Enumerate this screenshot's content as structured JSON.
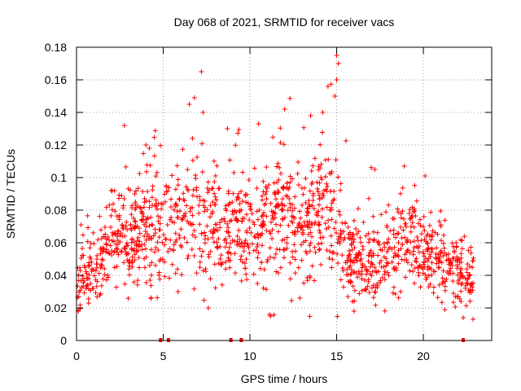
{
  "chart_data": {
    "type": "scatter",
    "title": "Day 068 of 2021, SRMTID for receiver vacs",
    "xlabel": "GPS time / hours",
    "ylabel": "SRMTID / TECUs",
    "xlim": [
      0,
      23.94
    ],
    "ylim": [
      0,
      0.18
    ],
    "xticks": [
      0,
      5,
      10,
      15,
      20
    ],
    "yticks": [
      0,
      0.02,
      0.04,
      0.06,
      0.08,
      0.1,
      0.12,
      0.14,
      0.16,
      0.18
    ],
    "xtick_labels": [
      "0",
      "5",
      "10",
      "15",
      "20"
    ],
    "ytick_labels": [
      "0",
      "0.02",
      "0.04",
      "0.06",
      "0.08",
      "0.1",
      "0.12",
      "0.14",
      "0.16",
      "0.18"
    ],
    "grid": true,
    "marker": "+",
    "color": "#ff0000",
    "envelope": [
      {
        "x": 0.0,
        "mean": 0.038,
        "spread": 0.01
      },
      {
        "x": 1.0,
        "mean": 0.042,
        "spread": 0.01
      },
      {
        "x": 1.7,
        "mean": 0.055,
        "spread": 0.012
      },
      {
        "x": 2.0,
        "mean": 0.068,
        "spread": 0.014
      },
      {
        "x": 3.0,
        "mean": 0.063,
        "spread": 0.014
      },
      {
        "x": 4.0,
        "mean": 0.068,
        "spread": 0.016
      },
      {
        "x": 4.5,
        "mean": 0.075,
        "spread": 0.02
      },
      {
        "x": 5.0,
        "mean": 0.07,
        "spread": 0.018
      },
      {
        "x": 6.0,
        "mean": 0.075,
        "spread": 0.018
      },
      {
        "x": 7.0,
        "mean": 0.08,
        "spread": 0.022
      },
      {
        "x": 8.0,
        "mean": 0.068,
        "spread": 0.016
      },
      {
        "x": 9.0,
        "mean": 0.07,
        "spread": 0.018
      },
      {
        "x": 10.0,
        "mean": 0.066,
        "spread": 0.016
      },
      {
        "x": 11.0,
        "mean": 0.07,
        "spread": 0.018
      },
      {
        "x": 12.0,
        "mean": 0.075,
        "spread": 0.02
      },
      {
        "x": 13.0,
        "mean": 0.068,
        "spread": 0.018
      },
      {
        "x": 14.0,
        "mean": 0.078,
        "spread": 0.022
      },
      {
        "x": 14.9,
        "mean": 0.08,
        "spread": 0.022
      },
      {
        "x": 15.3,
        "mean": 0.055,
        "spread": 0.012
      },
      {
        "x": 16.0,
        "mean": 0.05,
        "spread": 0.012
      },
      {
        "x": 17.0,
        "mean": 0.048,
        "spread": 0.012
      },
      {
        "x": 18.0,
        "mean": 0.052,
        "spread": 0.012
      },
      {
        "x": 19.0,
        "mean": 0.062,
        "spread": 0.014
      },
      {
        "x": 20.0,
        "mean": 0.055,
        "spread": 0.013
      },
      {
        "x": 21.0,
        "mean": 0.05,
        "spread": 0.012
      },
      {
        "x": 22.0,
        "mean": 0.045,
        "spread": 0.011
      },
      {
        "x": 22.9,
        "mean": 0.035,
        "spread": 0.01
      }
    ],
    "x_range_data": [
      0.0,
      22.9
    ],
    "num_points": 1500,
    "outliers": [
      {
        "x": 15.0,
        "y": 0.175
      },
      {
        "x": 15.1,
        "y": 0.17
      },
      {
        "x": 7.2,
        "y": 0.165
      },
      {
        "x": 15.0,
        "y": 0.16
      },
      {
        "x": 14.9,
        "y": 0.15
      },
      {
        "x": 14.5,
        "y": 0.156
      },
      {
        "x": 6.8,
        "y": 0.149
      },
      {
        "x": 12.0,
        "y": 0.142
      },
      {
        "x": 6.5,
        "y": 0.145
      },
      {
        "x": 14.2,
        "y": 0.14
      },
      {
        "x": 7.3,
        "y": 0.14
      },
      {
        "x": 8.7,
        "y": 0.13
      },
      {
        "x": 10.5,
        "y": 0.133
      },
      {
        "x": 13.5,
        "y": 0.138
      },
      {
        "x": 4.0,
        "y": 0.12
      },
      {
        "x": 4.2,
        "y": 0.118
      },
      {
        "x": 18.9,
        "y": 0.107
      },
      {
        "x": 17.2,
        "y": 0.105
      },
      {
        "x": 20.1,
        "y": 0.101
      },
      {
        "x": 11.2,
        "y": 0.015
      },
      {
        "x": 7.6,
        "y": 0.02
      },
      {
        "x": 16.0,
        "y": 0.018
      },
      {
        "x": 22.3,
        "y": 0.014
      },
      {
        "x": 0.1,
        "y": 0.018
      }
    ],
    "gap_marks": [
      4.85,
      5.3,
      8.9,
      9.5,
      22.3
    ]
  }
}
